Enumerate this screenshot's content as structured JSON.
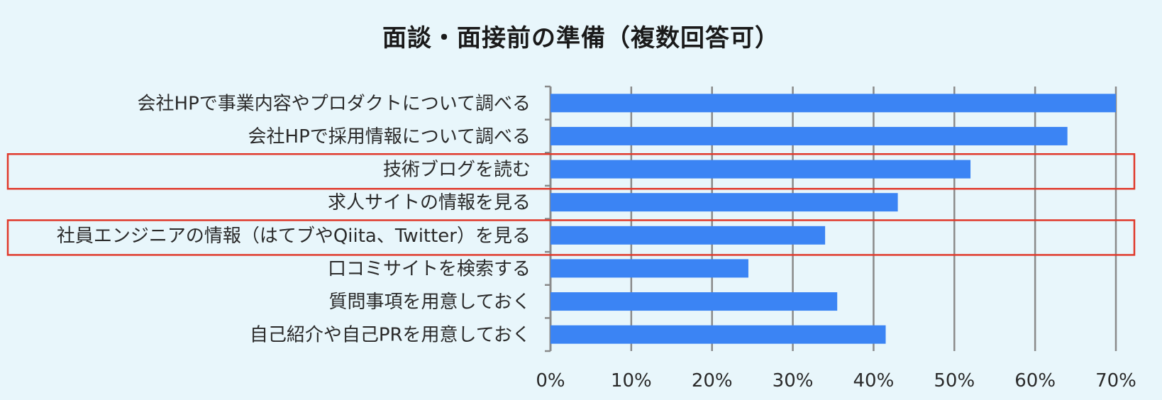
{
  "chart_data": {
    "type": "bar",
    "orientation": "horizontal",
    "title": "面談・面接前の準備（複数回答可）",
    "categories": [
      "会社HPで事業内容やプロダクトについて調べる",
      "会社HPで採用情報について調べる",
      "技術ブログを読む",
      "求人サイトの情報を見る",
      "社員エンジニアの情報（はてブやQiita、Twitter）を見る",
      "口コミサイトを検索する",
      "質問事項を用意しておく",
      "自己紹介や自己PRを用意しておく"
    ],
    "values": [
      70,
      64,
      52,
      43,
      34,
      24.5,
      35.5,
      41.5
    ],
    "unit": "%",
    "xlim": [
      0,
      70
    ],
    "ticks": [
      0,
      10,
      20,
      30,
      40,
      50,
      60,
      70
    ],
    "tick_labels": [
      "0%",
      "10%",
      "20%",
      "30%",
      "40%",
      "50%",
      "60%",
      "70%"
    ],
    "grid": true,
    "highlighted_categories": [
      2,
      4
    ],
    "colors": {
      "bar": "#3b84f4",
      "highlight_box": "#e0392b",
      "grid": "#8a8a8a",
      "background": "#e8f6fb"
    }
  }
}
